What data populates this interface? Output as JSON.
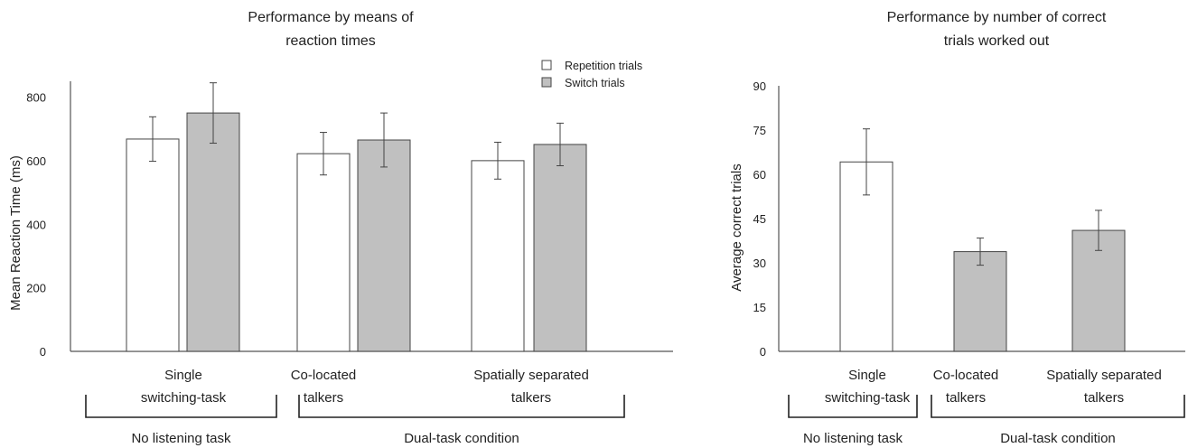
{
  "colors": {
    "repetition": "#ffffff",
    "switch": "#c0c0c0",
    "axis": "#555555"
  },
  "chart_data": [
    {
      "type": "bar",
      "title": "Performance by means of reaction times",
      "title_lines": [
        "Performance by means of",
        "reaction times"
      ],
      "ylabel": "Mean Reaction Time (ms)",
      "xlabel": "",
      "ylim": [
        0,
        850
      ],
      "yticks": [
        0,
        200,
        400,
        600,
        800
      ],
      "grid": false,
      "legend_position": "top-right",
      "categories": [
        {
          "lines": [
            "Single",
            "switching-task"
          ]
        },
        {
          "lines": [
            "Co-located",
            "talkers"
          ]
        },
        {
          "lines": [
            "Spatially separated",
            "talkers"
          ]
        }
      ],
      "series": [
        {
          "name": "Repetition trials",
          "color": "#ffffff",
          "values": [
            668,
            622,
            600
          ],
          "error": [
            70,
            67,
            58
          ]
        },
        {
          "name": "Switch trials",
          "color": "#c0c0c0",
          "values": [
            750,
            665,
            651
          ],
          "error": [
            95,
            85,
            67
          ]
        }
      ],
      "groups": [
        {
          "label": "No listening task",
          "span": [
            0,
            0
          ]
        },
        {
          "label": "Dual-task condition",
          "span": [
            1,
            2
          ]
        }
      ]
    },
    {
      "type": "bar",
      "title": "Performance by number of correct trials worked out",
      "title_lines": [
        "Performance by number of correct",
        "trials worked out"
      ],
      "ylabel": "Average correct trials",
      "xlabel": "",
      "ylim": [
        0,
        90
      ],
      "yticks": [
        0,
        15,
        30,
        45,
        60,
        75,
        90
      ],
      "grid": false,
      "categories": [
        {
          "lines": [
            "Single",
            "switching-task"
          ]
        },
        {
          "lines": [
            "Co-located",
            "talkers"
          ]
        },
        {
          "lines": [
            "Spatially separated",
            "talkers"
          ]
        }
      ],
      "values": [
        64.2,
        33.8,
        41
      ],
      "error": [
        11.2,
        4.6,
        6.8
      ],
      "bar_colors": [
        "#ffffff",
        "#c0c0c0",
        "#c0c0c0"
      ],
      "groups": [
        {
          "label": "No listening task",
          "span": [
            0,
            0
          ]
        },
        {
          "label": "Dual-task condition",
          "span": [
            1,
            2
          ]
        }
      ]
    }
  ]
}
